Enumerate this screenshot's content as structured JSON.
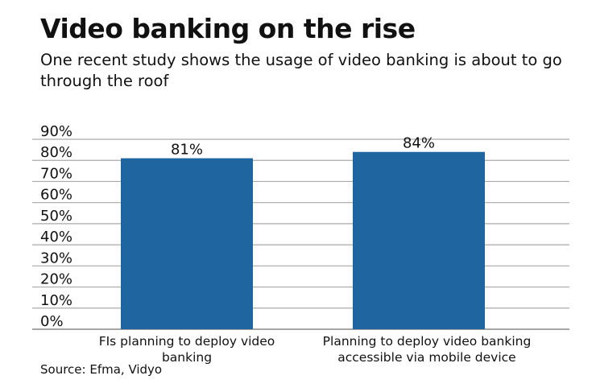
{
  "chart_data": {
    "type": "bar",
    "title": "Video banking on the rise",
    "subtitle": "One recent study shows the usage of video banking is about to go through the roof",
    "categories": [
      [
        "FIs planning to deploy video",
        "banking"
      ],
      [
        "Planning to deploy video banking",
        "accessible via mobile device"
      ]
    ],
    "values": [
      81,
      84
    ],
    "data_labels": [
      "81%",
      "84%"
    ],
    "ylim": [
      0,
      90
    ],
    "yticks": [
      0,
      10,
      20,
      30,
      40,
      50,
      60,
      70,
      80,
      90
    ],
    "ytick_labels": [
      "0%",
      "10%",
      "20%",
      "30%",
      "40%",
      "50%",
      "60%",
      "70%",
      "80%",
      "90%"
    ],
    "xlabel": "",
    "ylabel": "",
    "grid": true,
    "bar_color": "#1f65a0",
    "source": "Source: Efma, Vidyo"
  }
}
